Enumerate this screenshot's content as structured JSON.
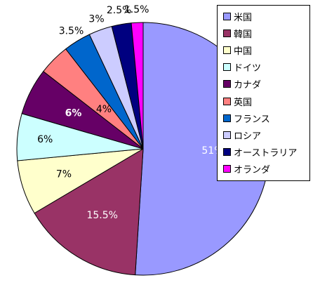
{
  "chart_data": {
    "type": "pie",
    "title": "",
    "categories": [
      "米国",
      "韓国",
      "中国",
      "ドイツ",
      "カナダ",
      "英国",
      "フランス",
      "ロシア",
      "オーストラリア",
      "オランダ"
    ],
    "values": [
      51,
      15.5,
      7,
      6,
      6,
      4,
      3.5,
      3,
      2.5,
      1.5
    ],
    "data_labels": [
      "51%",
      "15.5%",
      "7%",
      "6%",
      "6%",
      "4%",
      "3.5%",
      "3%",
      "2.5%",
      "1.5%"
    ],
    "colors": [
      "#9999ff",
      "#993366",
      "#ffffcc",
      "#ccffff",
      "#660066",
      "#ff8080",
      "#0066cc",
      "#ccccff",
      "#000080",
      "#ff00ff"
    ],
    "label_colors": [
      "#ffffff",
      "#ffffff",
      "#000000",
      "#000000",
      "#ffffff",
      "#000000",
      "#000000",
      "#000000",
      "#000000",
      "#000000"
    ],
    "start_angle_deg": 0,
    "direction": "clockwise",
    "legend_position": "right"
  }
}
